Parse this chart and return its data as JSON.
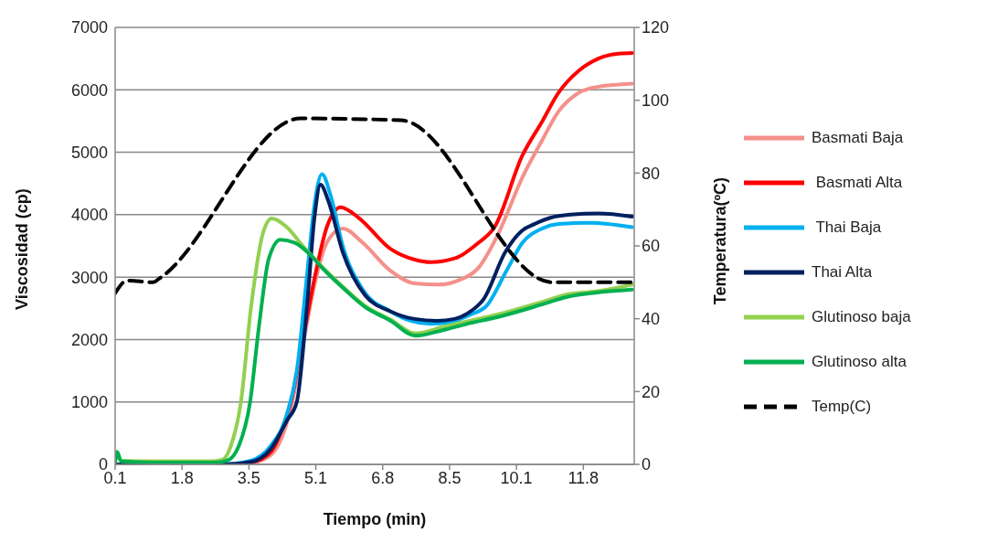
{
  "chart_data": {
    "type": "line",
    "xlabel": "Tiempo (min)",
    "ylabel": "Viscosidad (cp)",
    "y2label": "Temperatura(ºC)",
    "xlim": [
      0.1,
      13.1
    ],
    "xticks": [
      {
        "value": 0.1,
        "label": "0.1"
      },
      {
        "value": 1.775,
        "label": "1.8"
      },
      {
        "value": 3.45,
        "label": "3.5"
      },
      {
        "value": 5.125,
        "label": "5.1"
      },
      {
        "value": 6.8,
        "label": "6.8"
      },
      {
        "value": 8.475,
        "label": "8.5"
      },
      {
        "value": 10.15,
        "label": "10.1"
      },
      {
        "value": 11.825,
        "label": "11.8"
      }
    ],
    "ylim": [
      0,
      7000
    ],
    "yticks": [
      0,
      1000,
      2000,
      3000,
      4000,
      5000,
      6000,
      7000
    ],
    "y2lim": [
      0,
      120
    ],
    "y2ticks": [
      0,
      20,
      40,
      60,
      80,
      100,
      120
    ],
    "grid": "y",
    "legend": "right",
    "marker": "none",
    "series": [
      {
        "name": "Basmati Baja",
        "color": "#f4908a",
        "x": [
          0.1,
          3.0,
          3.5,
          4.0,
          4.5,
          4.8,
          5.1,
          5.4,
          5.8,
          6.3,
          7.0,
          7.6,
          8.2,
          8.7,
          9.2,
          9.7,
          10.3,
          10.8,
          11.2,
          11.7,
          12.2,
          13.05
        ],
        "values": [
          0,
          0,
          20,
          150,
          900,
          1900,
          2900,
          3550,
          3780,
          3550,
          3100,
          2900,
          2880,
          2950,
          3150,
          3700,
          4600,
          5200,
          5650,
          5950,
          6050,
          6100
        ]
      },
      {
        "name": " Basmati Alta",
        "color": "#ff0000",
        "x": [
          0.1,
          3.0,
          3.5,
          4.0,
          4.3,
          4.5,
          4.8,
          5.1,
          5.4,
          5.75,
          6.2,
          7.0,
          7.6,
          8.0,
          8.6,
          9.2,
          9.6,
          10.3,
          10.8,
          11.2,
          11.7,
          12.2,
          12.7,
          13.05
        ],
        "values": [
          0,
          0,
          30,
          200,
          600,
          1000,
          2000,
          3000,
          3800,
          4120,
          3950,
          3450,
          3280,
          3240,
          3300,
          3550,
          3800,
          4950,
          5500,
          5950,
          6300,
          6500,
          6580,
          6590
        ]
      },
      {
        "name": " Thai Baja",
        "color": "#00b0f0",
        "x": [
          0.1,
          2.8,
          3.5,
          4.0,
          4.4,
          4.65,
          4.9,
          5.1,
          5.28,
          5.5,
          5.8,
          6.3,
          7.0,
          7.5,
          8.0,
          8.5,
          9.0,
          9.4,
          9.9,
          10.3,
          10.8,
          11.2,
          12.0,
          13.05
        ],
        "values": [
          0,
          0,
          60,
          300,
          800,
          1500,
          3000,
          4200,
          4650,
          4300,
          3500,
          2800,
          2450,
          2300,
          2250,
          2280,
          2400,
          2540,
          3100,
          3550,
          3780,
          3850,
          3870,
          3800
        ]
      },
      {
        "name": "Thai Alta",
        "color": "#002060",
        "x": [
          0.1,
          2.8,
          3.5,
          4.0,
          4.4,
          4.65,
          4.9,
          5.1,
          5.24,
          5.45,
          5.8,
          6.36,
          7.0,
          7.6,
          8.16,
          8.6,
          9.0,
          9.33,
          9.87,
          10.3,
          10.6,
          11.0,
          11.5,
          12.2,
          13.05
        ],
        "values": [
          0,
          0,
          40,
          250,
          700,
          1000,
          2500,
          4000,
          4480,
          4200,
          3400,
          2710,
          2450,
          2330,
          2300,
          2330,
          2450,
          2650,
          3400,
          3750,
          3850,
          3950,
          4000,
          4020,
          3970
        ]
      },
      {
        "name": "Glutinoso baja",
        "color": "#92d050",
        "x": [
          0.1,
          0.15,
          0.25,
          1.0,
          2.5,
          2.8,
          3.0,
          3.25,
          3.5,
          3.8,
          4.02,
          4.4,
          4.8,
          5.28,
          5.8,
          6.36,
          7.0,
          7.62,
          8.3,
          8.97,
          9.8,
          10.78,
          11.4,
          12.13,
          13.05
        ],
        "values": [
          50,
          150,
          60,
          50,
          50,
          80,
          300,
          1000,
          2500,
          3700,
          3940,
          3800,
          3500,
          3170,
          2850,
          2540,
          2320,
          2100,
          2200,
          2300,
          2420,
          2600,
          2720,
          2770,
          2880
        ]
      },
      {
        "name": "Glutinoso alta",
        "color": "#00b050",
        "x": [
          0.1,
          0.15,
          0.25,
          1.0,
          2.6,
          2.9,
          3.2,
          3.48,
          3.7,
          3.95,
          4.24,
          4.6,
          5.0,
          5.28,
          5.8,
          6.36,
          7.0,
          7.62,
          8.3,
          8.97,
          9.8,
          10.78,
          11.4,
          12.13,
          13.05
        ],
        "values": [
          30,
          200,
          50,
          30,
          30,
          60,
          300,
          1000,
          2200,
          3300,
          3600,
          3550,
          3350,
          3150,
          2830,
          2520,
          2300,
          2060,
          2150,
          2260,
          2380,
          2560,
          2680,
          2750,
          2800
        ]
      },
      {
        "name": "Temp(C)",
        "color": "#000000",
        "axis": "y2",
        "line_style": "dashed",
        "x": [
          0.1,
          0.4,
          1.05,
          1.2,
          4.74,
          7.26,
          11.05,
          13.05
        ],
        "values": [
          47,
          50.5,
          50,
          51,
          95,
          94.5,
          50,
          50
        ]
      }
    ]
  }
}
